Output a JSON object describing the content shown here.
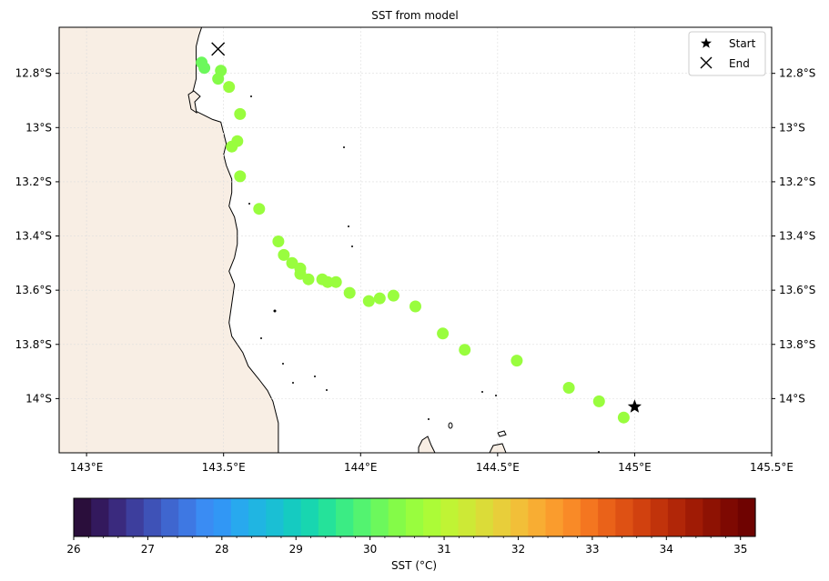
{
  "title": "SST from model",
  "map": {
    "lon_range": [
      142.9,
      145.5
    ],
    "lat_range": [
      -14.2,
      -12.63
    ],
    "x_ticks": [
      {
        "value": 143.0,
        "label": "143°E"
      },
      {
        "value": 143.5,
        "label": "143.5°E"
      },
      {
        "value": 144.0,
        "label": "144°E"
      },
      {
        "value": 144.5,
        "label": "144.5°E"
      },
      {
        "value": 145.0,
        "label": "145°E"
      },
      {
        "value": 145.5,
        "label": "145.5°E"
      }
    ],
    "y_ticks": [
      {
        "value": -12.8,
        "label": "12.8°S"
      },
      {
        "value": -13.0,
        "label": "13°S"
      },
      {
        "value": -13.2,
        "label": "13.2°S"
      },
      {
        "value": -13.4,
        "label": "13.4°S"
      },
      {
        "value": -13.6,
        "label": "13.6°S"
      },
      {
        "value": -13.8,
        "label": "13.8°S"
      },
      {
        "value": -14.0,
        "label": "14°S"
      }
    ],
    "gridlines": true,
    "land_color": "#f8eee4",
    "coastline": [
      [
        143.42,
        -12.63
      ],
      [
        143.41,
        -12.66
      ],
      [
        143.4,
        -12.7
      ],
      [
        143.4,
        -12.75
      ],
      [
        143.4,
        -12.82
      ],
      [
        143.39,
        -12.86
      ],
      [
        143.38,
        -12.89
      ],
      [
        143.4,
        -12.94
      ],
      [
        143.46,
        -12.97
      ],
      [
        143.49,
        -12.98
      ],
      [
        143.5,
        -13.02
      ],
      [
        143.51,
        -13.06
      ],
      [
        143.5,
        -13.1
      ],
      [
        143.51,
        -13.14
      ],
      [
        143.53,
        -13.19
      ],
      [
        143.53,
        -13.24
      ],
      [
        143.52,
        -13.29
      ],
      [
        143.54,
        -13.33
      ],
      [
        143.55,
        -13.38
      ],
      [
        143.55,
        -13.43
      ],
      [
        143.54,
        -13.48
      ],
      [
        143.52,
        -13.53
      ],
      [
        143.54,
        -13.58
      ],
      [
        143.53,
        -13.65
      ],
      [
        143.52,
        -13.72
      ],
      [
        143.53,
        -13.77
      ],
      [
        143.57,
        -13.83
      ],
      [
        143.59,
        -13.88
      ],
      [
        143.63,
        -13.93
      ],
      [
        143.66,
        -13.97
      ],
      [
        143.68,
        -14.01
      ],
      [
        143.69,
        -14.05
      ],
      [
        143.7,
        -14.09
      ],
      [
        143.7,
        -14.13
      ],
      [
        143.7,
        -14.2
      ],
      [
        142.9,
        -14.2
      ],
      [
        142.9,
        -12.63
      ]
    ]
  },
  "track": {
    "start": {
      "lon": 145.0,
      "lat": -14.03
    },
    "end": {
      "lon": 143.48,
      "lat": -12.71
    },
    "points": [
      {
        "lon": 144.96,
        "lat": -14.07,
        "sst": 30.6
      },
      {
        "lon": 144.87,
        "lat": -14.01,
        "sst": 30.6
      },
      {
        "lon": 144.76,
        "lat": -13.96,
        "sst": 30.6
      },
      {
        "lon": 144.57,
        "lat": -13.86,
        "sst": 30.6
      },
      {
        "lon": 144.38,
        "lat": -13.82,
        "sst": 30.6
      },
      {
        "lon": 144.3,
        "lat": -13.76,
        "sst": 30.6
      },
      {
        "lon": 144.2,
        "lat": -13.66,
        "sst": 30.6
      },
      {
        "lon": 144.12,
        "lat": -13.62,
        "sst": 30.6
      },
      {
        "lon": 144.07,
        "lat": -13.63,
        "sst": 30.6
      },
      {
        "lon": 144.03,
        "lat": -13.64,
        "sst": 30.6
      },
      {
        "lon": 143.96,
        "lat": -13.61,
        "sst": 30.6
      },
      {
        "lon": 143.91,
        "lat": -13.57,
        "sst": 30.6
      },
      {
        "lon": 143.88,
        "lat": -13.57,
        "sst": 30.6
      },
      {
        "lon": 143.86,
        "lat": -13.56,
        "sst": 30.6
      },
      {
        "lon": 143.81,
        "lat": -13.56,
        "sst": 30.6
      },
      {
        "lon": 143.78,
        "lat": -13.54,
        "sst": 30.6
      },
      {
        "lon": 143.78,
        "lat": -13.52,
        "sst": 30.6
      },
      {
        "lon": 143.75,
        "lat": -13.5,
        "sst": 30.6
      },
      {
        "lon": 143.72,
        "lat": -13.47,
        "sst": 30.6
      },
      {
        "lon": 143.7,
        "lat": -13.42,
        "sst": 30.6
      },
      {
        "lon": 143.63,
        "lat": -13.3,
        "sst": 30.6
      },
      {
        "lon": 143.56,
        "lat": -13.18,
        "sst": 30.6
      },
      {
        "lon": 143.53,
        "lat": -13.07,
        "sst": 30.6
      },
      {
        "lon": 143.55,
        "lat": -13.05,
        "sst": 30.6
      },
      {
        "lon": 143.56,
        "lat": -12.95,
        "sst": 30.6
      },
      {
        "lon": 143.52,
        "lat": -12.85,
        "sst": 30.7
      },
      {
        "lon": 143.48,
        "lat": -12.82,
        "sst": 30.3
      },
      {
        "lon": 143.49,
        "lat": -12.79,
        "sst": 30.3
      },
      {
        "lon": 143.43,
        "lat": -12.78,
        "sst": 30.1
      },
      {
        "lon": 143.42,
        "lat": -12.76,
        "sst": 30.2
      }
    ]
  },
  "legend": {
    "start_label": "Start",
    "end_label": "End",
    "placement": "top-right"
  },
  "colorbar": {
    "label": "SST (°C)",
    "min": 26.0,
    "max": 35.2,
    "tick_values": [
      26,
      27,
      28,
      29,
      30,
      31,
      32,
      33,
      34,
      35
    ],
    "colors": [
      "#2a0e3b",
      "#33195d",
      "#3a2a7e",
      "#3d3e9d",
      "#3e52b7",
      "#3f66cf",
      "#3e78e3",
      "#3a8cf3",
      "#3197f5",
      "#28a9ee",
      "#20b5e2",
      "#1abfd4",
      "#15cbc1",
      "#18d6b0",
      "#25e29a",
      "#3bec84",
      "#53f370",
      "#6cf85c",
      "#84fb48",
      "#99fd3e",
      "#acfb37",
      "#c0f434",
      "#cde936",
      "#dbdc38",
      "#e8ce3a",
      "#f2bf38",
      "#f8ad33",
      "#fa9c2d",
      "#f98a27",
      "#f47620",
      "#ea6219",
      "#de5114",
      "#d1410f",
      "#c1330b",
      "#b12608",
      "#a01b05",
      "#8e1203",
      "#7e0902",
      "#6f0301"
    ]
  }
}
